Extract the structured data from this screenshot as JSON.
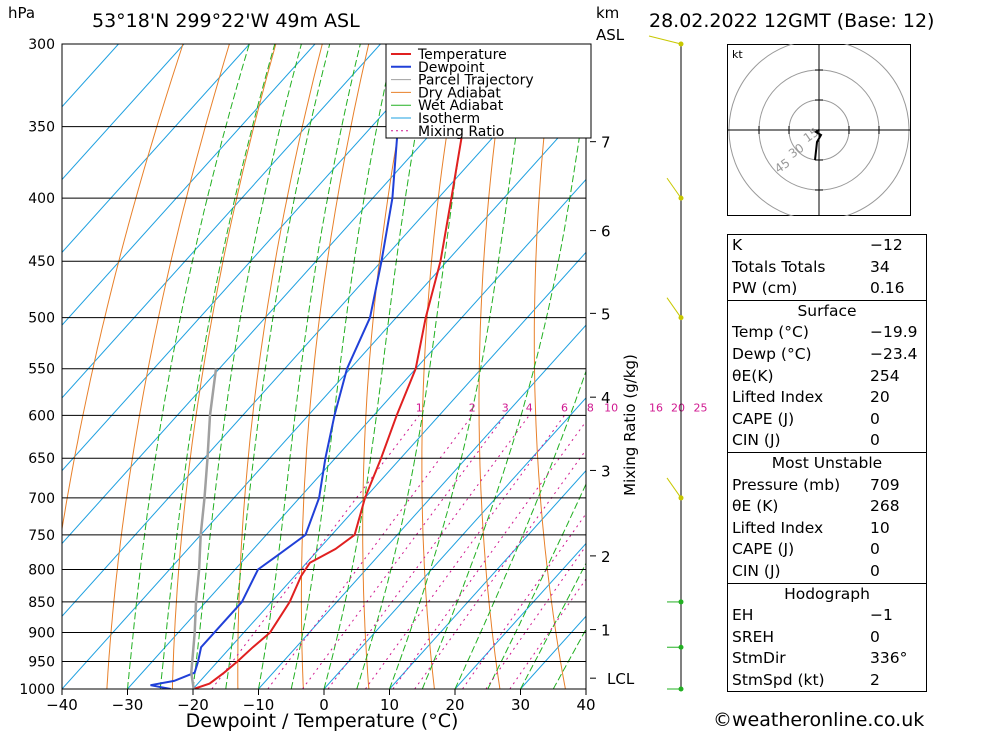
{
  "header": {
    "hpa": "hPa",
    "location": "53°18'N  299°22'W  49m  ASL",
    "km": "km",
    "asl": "ASL",
    "datetime": "28.02.2022  12GMT  (Base: 12)"
  },
  "chart_data": {
    "type": "line",
    "title": "53°18'N  299°22'W  49m  ASL",
    "xlabel": "Dewpoint / Temperature (°C)",
    "ylabel": "hPa",
    "secondary_ylabel": "Mixing Ratio (g/kg)",
    "xlim": [
      -40,
      40
    ],
    "ylim": [
      1000,
      300
    ],
    "x_ticks": [
      "−40",
      "−30",
      "−20",
      "−10",
      "0",
      "10",
      "20",
      "30",
      "40"
    ],
    "pressure_levels": [
      300,
      350,
      400,
      450,
      500,
      550,
      600,
      650,
      700,
      750,
      800,
      850,
      900,
      950,
      1000
    ],
    "km_ticks": [
      {
        "label": "7",
        "p": 360
      },
      {
        "label": "6",
        "p": 425
      },
      {
        "label": "5",
        "p": 496
      },
      {
        "label": "4",
        "p": 580
      },
      {
        "label": "3",
        "p": 665
      },
      {
        "label": "2",
        "p": 780
      },
      {
        "label": "1",
        "p": 895
      },
      {
        "label": "LCL",
        "p": 980
      }
    ],
    "mixing_ratio_labels": [
      "1",
      "2",
      "3",
      "4",
      "6",
      "8",
      "10",
      "16",
      "20",
      "25"
    ],
    "legend": [
      "Temperature",
      "Dewpoint",
      "Parcel Trajectory",
      "Dry Adiabat",
      "Wet Adiabat",
      "Isotherm",
      "Mixing Ratio"
    ],
    "legend_position": "top-right",
    "series": [
      {
        "name": "Temperature",
        "color": "#e02020",
        "points": [
          [
            1000,
            -19.9
          ],
          [
            990,
            -18.2
          ],
          [
            970,
            -17.5
          ],
          [
            950,
            -17.0
          ],
          [
            925,
            -16.6
          ],
          [
            900,
            -16.0
          ],
          [
            850,
            -17.2
          ],
          [
            810,
            -19.0
          ],
          [
            790,
            -19.5
          ],
          [
            770,
            -17.5
          ],
          [
            750,
            -16.5
          ],
          [
            700,
            -20.0
          ],
          [
            650,
            -23.0
          ],
          [
            600,
            -26.5
          ],
          [
            550,
            -30.0
          ],
          [
            500,
            -35.5
          ],
          [
            450,
            -41.0
          ],
          [
            400,
            -48.0
          ],
          [
            350,
            -56.0
          ],
          [
            320,
            -57.0
          ],
          [
            310,
            -56.0
          ],
          [
            300,
            -58.0
          ]
        ]
      },
      {
        "name": "Dewpoint",
        "color": "#2040d8",
        "points": [
          [
            1000,
            -23.4
          ],
          [
            993,
            -27.0
          ],
          [
            985,
            -24.0
          ],
          [
            970,
            -22.0
          ],
          [
            950,
            -23.0
          ],
          [
            925,
            -24.5
          ],
          [
            900,
            -24.5
          ],
          [
            850,
            -24.5
          ],
          [
            800,
            -26.5
          ],
          [
            780,
            -25.5
          ],
          [
            750,
            -24.0
          ],
          [
            700,
            -27.0
          ],
          [
            650,
            -31.5
          ],
          [
            600,
            -36.0
          ],
          [
            550,
            -40.5
          ],
          [
            500,
            -44.0
          ],
          [
            450,
            -50.0
          ],
          [
            400,
            -57.0
          ],
          [
            350,
            -66.0
          ],
          [
            330,
            -66.0
          ],
          [
            310,
            -65.0
          ],
          [
            300,
            -66.0
          ]
        ]
      },
      {
        "name": "Parcel Trajectory",
        "color": "#a0a0a0",
        "points": [
          [
            1000,
            -19.9
          ],
          [
            970,
            -22.5
          ],
          [
            900,
            -27.5
          ],
          [
            850,
            -31.5
          ],
          [
            800,
            -35.5
          ],
          [
            750,
            -40.0
          ],
          [
            700,
            -44.5
          ],
          [
            650,
            -49.5
          ],
          [
            600,
            -55.0
          ],
          [
            550,
            -60.5
          ]
        ]
      }
    ],
    "wind_barbs_kt": [
      {
        "p": 1000,
        "speed": 10
      },
      {
        "p": 925,
        "speed": 15
      },
      {
        "p": 850,
        "speed": 10
      },
      {
        "p": 700,
        "speed": 10
      },
      {
        "p": 500,
        "speed": 10
      },
      {
        "p": 400,
        "speed": 10
      },
      {
        "p": 300,
        "speed": 20
      }
    ]
  },
  "hodograph": {
    "unit": "kt",
    "ring_labels": [
      "15",
      "30",
      "45"
    ]
  },
  "indices": {
    "k_label": "K",
    "k_value": "−12",
    "tt_label": "Totals Totals",
    "tt_value": "34",
    "pw_label": "PW (cm)",
    "pw_value": "0.16"
  },
  "surface": {
    "title": "Surface",
    "temp_label": "Temp (°C)",
    "temp_value": "−19.9",
    "dewp_label": "Dewp (°C)",
    "dewp_value": "−23.4",
    "thetae_label": "θE(K)",
    "thetae_value": "254",
    "li_label": "Lifted Index",
    "li_value": "20",
    "cape_label": "CAPE (J)",
    "cape_value": "0",
    "cin_label": "CIN (J)",
    "cin_value": "0"
  },
  "most_unstable": {
    "title": "Most Unstable",
    "pressure_label": "Pressure (mb)",
    "pressure_value": "709",
    "thetae_label": "θE (K)",
    "thetae_value": "268",
    "li_label": "Lifted Index",
    "li_value": "10",
    "cape_label": "CAPE (J)",
    "cape_value": "0",
    "cin_label": "CIN (J)",
    "cin_value": "0"
  },
  "hodograph_table": {
    "title": "Hodograph",
    "eh_label": "EH",
    "eh_value": "−1",
    "sreh_label": "SREH",
    "sreh_value": "0",
    "stmdir_label": "StmDir",
    "stmdir_value": "336°",
    "stmspd_label": "StmSpd (kt)",
    "stmspd_value": "2"
  },
  "footer": "©weatheronline.co.uk",
  "colors": {
    "temperature": "#e02020",
    "dewpoint": "#2040d8",
    "parcel": "#a0a0a0",
    "dry_adiabat": "#e8802a",
    "wet_adiabat": "#22b022",
    "isotherm": "#1ea0e0",
    "mixing_ratio": "#d01890"
  }
}
